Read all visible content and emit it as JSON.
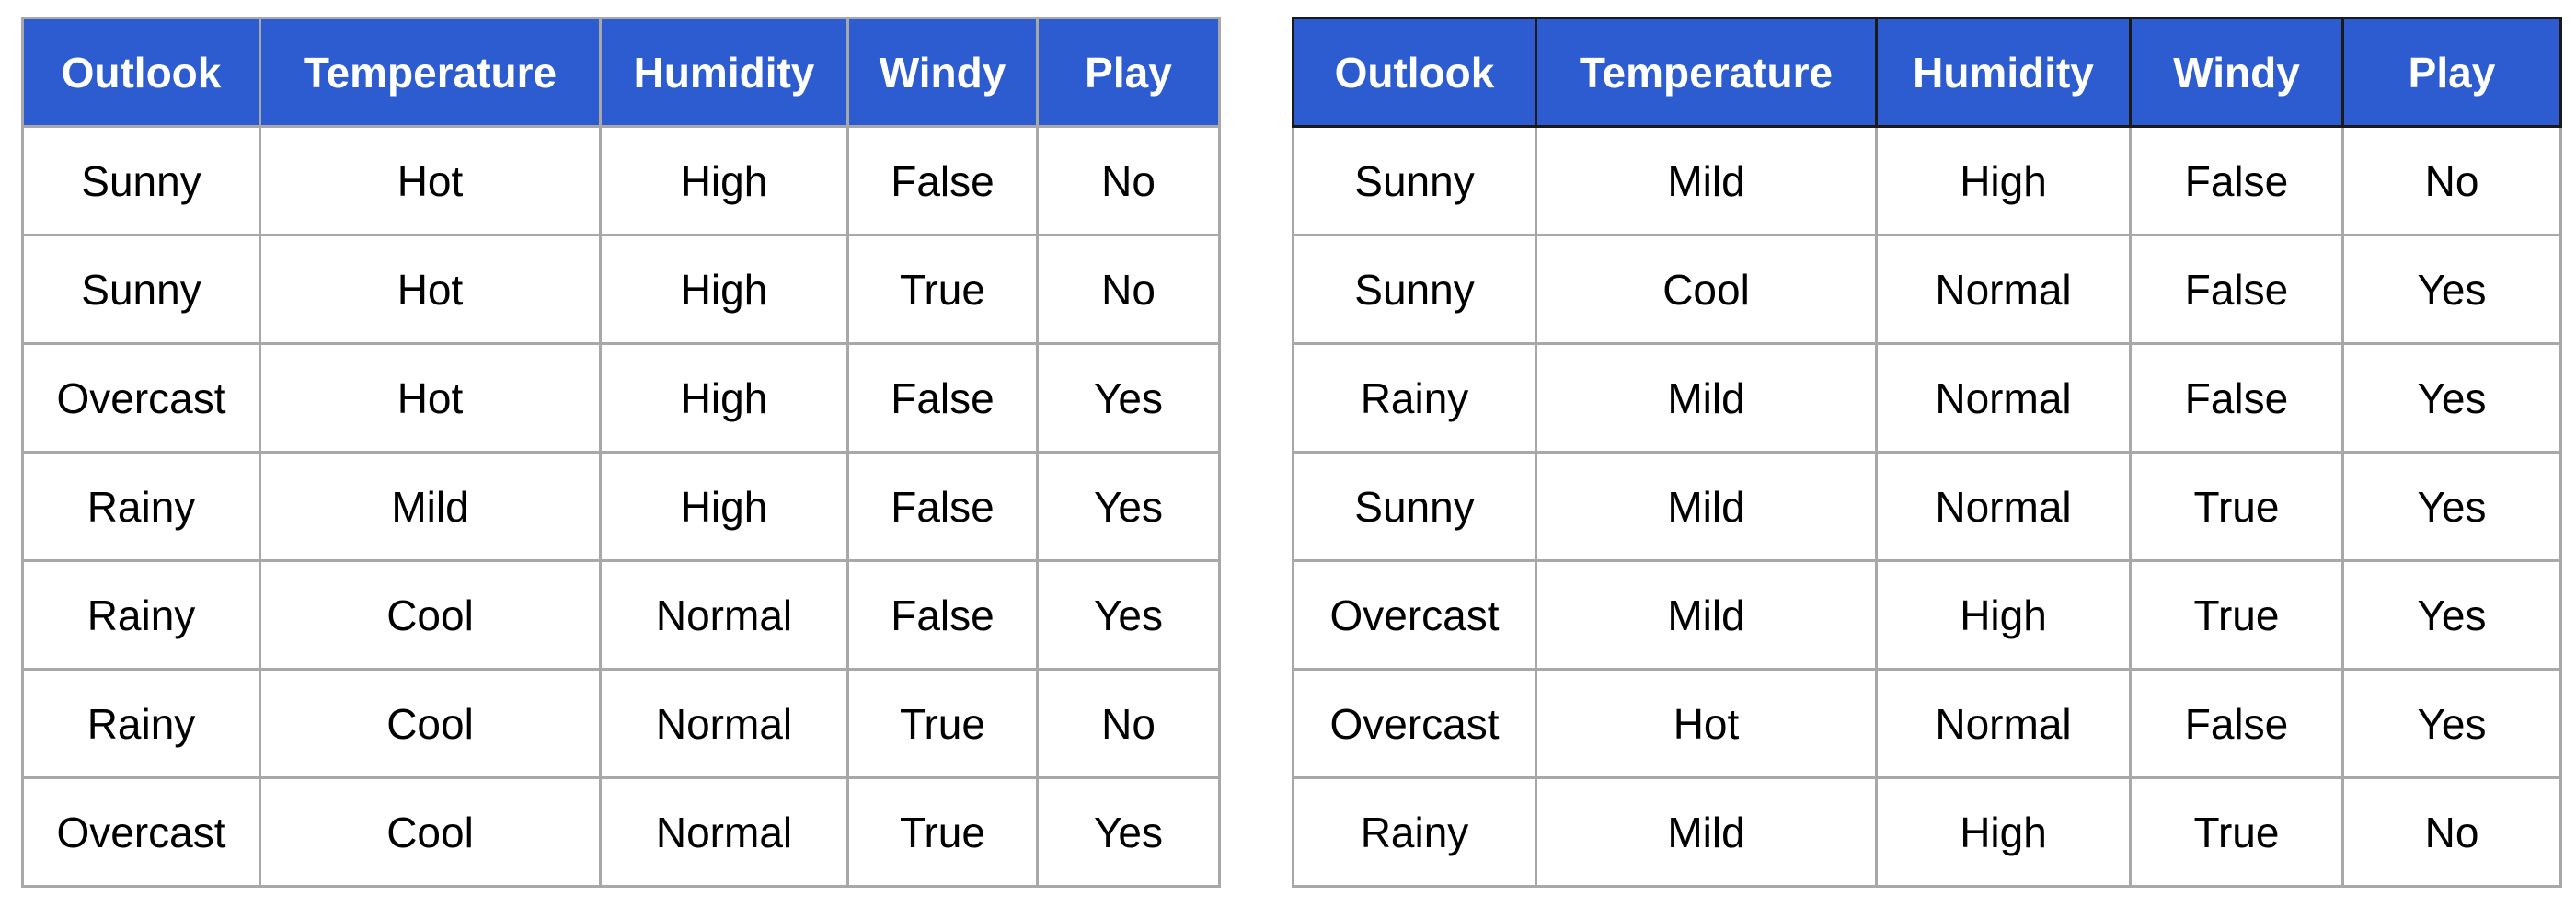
{
  "tables": [
    {
      "headers": [
        "Outlook",
        "Temperature",
        "Humidity",
        "Windy",
        "Play"
      ],
      "rows": [
        [
          "Sunny",
          "Hot",
          "High",
          "False",
          "No"
        ],
        [
          "Sunny",
          "Hot",
          "High",
          "True",
          "No"
        ],
        [
          "Overcast",
          "Hot",
          "High",
          "False",
          "Yes"
        ],
        [
          "Rainy",
          "Mild",
          "High",
          "False",
          "Yes"
        ],
        [
          "Rainy",
          "Cool",
          "Normal",
          "False",
          "Yes"
        ],
        [
          "Rainy",
          "Cool",
          "Normal",
          "True",
          "No"
        ],
        [
          "Overcast",
          "Cool",
          "Normal",
          "True",
          "Yes"
        ]
      ]
    },
    {
      "headers": [
        "Outlook",
        "Temperature",
        "Humidity",
        "Windy",
        "Play"
      ],
      "rows": [
        [
          "Sunny",
          "Mild",
          "High",
          "False",
          "No"
        ],
        [
          "Sunny",
          "Cool",
          "Normal",
          "False",
          "Yes"
        ],
        [
          "Rainy",
          "Mild",
          "Normal",
          "False",
          "Yes"
        ],
        [
          "Sunny",
          "Mild",
          "Normal",
          "True",
          "Yes"
        ],
        [
          "Overcast",
          "Mild",
          "High",
          "True",
          "Yes"
        ],
        [
          "Overcast",
          "Hot",
          "Normal",
          "False",
          "Yes"
        ],
        [
          "Rainy",
          "Mild",
          "High",
          "True",
          "No"
        ]
      ]
    }
  ],
  "colors": {
    "header_background": "#2c5ccf",
    "header_text": "#ffffff",
    "grid_line": "#a8a8a8"
  }
}
